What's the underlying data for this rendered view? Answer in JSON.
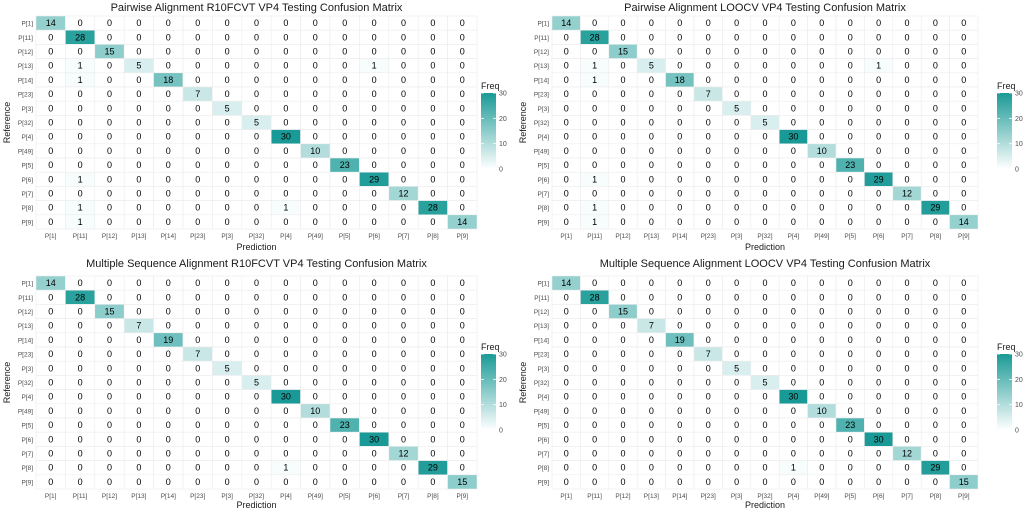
{
  "chart_data": [
    {
      "type": "heatmap",
      "title": "Pairwise Alignment R10FCVT VP4 Testing Confusion Matrix",
      "xlabel": "Prediction",
      "ylabel": "Reference",
      "categories": [
        "P[1]",
        "P[11]",
        "P[12]",
        "P[13]",
        "P[14]",
        "P[23]",
        "P[3]",
        "P[32]",
        "P[4]",
        "P[49]",
        "P[5]",
        "P[6]",
        "P[7]",
        "P[8]",
        "P[9]"
      ],
      "values": [
        [
          14,
          0,
          0,
          0,
          0,
          0,
          0,
          0,
          0,
          0,
          0,
          0,
          0,
          0,
          0
        ],
        [
          0,
          28,
          0,
          0,
          0,
          0,
          0,
          0,
          0,
          0,
          0,
          0,
          0,
          0,
          0
        ],
        [
          0,
          0,
          15,
          0,
          0,
          0,
          0,
          0,
          0,
          0,
          0,
          0,
          0,
          0,
          0
        ],
        [
          0,
          1,
          0,
          5,
          0,
          0,
          0,
          0,
          0,
          0,
          0,
          1,
          0,
          0,
          0
        ],
        [
          0,
          1,
          0,
          0,
          18,
          0,
          0,
          0,
          0,
          0,
          0,
          0,
          0,
          0,
          0
        ],
        [
          0,
          0,
          0,
          0,
          0,
          7,
          0,
          0,
          0,
          0,
          0,
          0,
          0,
          0,
          0
        ],
        [
          0,
          0,
          0,
          0,
          0,
          0,
          5,
          0,
          0,
          0,
          0,
          0,
          0,
          0,
          0
        ],
        [
          0,
          0,
          0,
          0,
          0,
          0,
          0,
          5,
          0,
          0,
          0,
          0,
          0,
          0,
          0
        ],
        [
          0,
          0,
          0,
          0,
          0,
          0,
          0,
          0,
          30,
          0,
          0,
          0,
          0,
          0,
          0
        ],
        [
          0,
          0,
          0,
          0,
          0,
          0,
          0,
          0,
          0,
          10,
          0,
          0,
          0,
          0,
          0
        ],
        [
          0,
          0,
          0,
          0,
          0,
          0,
          0,
          0,
          0,
          0,
          23,
          0,
          0,
          0,
          0
        ],
        [
          0,
          1,
          0,
          0,
          0,
          0,
          0,
          0,
          0,
          0,
          0,
          29,
          0,
          0,
          0
        ],
        [
          0,
          0,
          0,
          0,
          0,
          0,
          0,
          0,
          0,
          0,
          0,
          0,
          12,
          0,
          0
        ],
        [
          0,
          1,
          0,
          0,
          0,
          0,
          0,
          0,
          1,
          0,
          0,
          0,
          0,
          28,
          0
        ],
        [
          0,
          1,
          0,
          0,
          0,
          0,
          0,
          0,
          0,
          0,
          0,
          0,
          0,
          0,
          14
        ]
      ],
      "legend": {
        "title": "Freq",
        "ticks": [
          0,
          10,
          20,
          30
        ],
        "range": [
          0,
          30
        ]
      }
    },
    {
      "type": "heatmap",
      "title": "Pairwise Alignment LOOCV VP4 Testing Confusion Matrix",
      "xlabel": "Prediction",
      "ylabel": "Reference",
      "categories": [
        "P[1]",
        "P[11]",
        "P[12]",
        "P[13]",
        "P[14]",
        "P[23]",
        "P[3]",
        "P[32]",
        "P[4]",
        "P[49]",
        "P[5]",
        "P[6]",
        "P[7]",
        "P[8]",
        "P[9]"
      ],
      "values": [
        [
          14,
          0,
          0,
          0,
          0,
          0,
          0,
          0,
          0,
          0,
          0,
          0,
          0,
          0,
          0
        ],
        [
          0,
          28,
          0,
          0,
          0,
          0,
          0,
          0,
          0,
          0,
          0,
          0,
          0,
          0,
          0
        ],
        [
          0,
          0,
          15,
          0,
          0,
          0,
          0,
          0,
          0,
          0,
          0,
          0,
          0,
          0,
          0
        ],
        [
          0,
          1,
          0,
          5,
          0,
          0,
          0,
          0,
          0,
          0,
          0,
          1,
          0,
          0,
          0
        ],
        [
          0,
          1,
          0,
          0,
          18,
          0,
          0,
          0,
          0,
          0,
          0,
          0,
          0,
          0,
          0
        ],
        [
          0,
          0,
          0,
          0,
          0,
          7,
          0,
          0,
          0,
          0,
          0,
          0,
          0,
          0,
          0
        ],
        [
          0,
          0,
          0,
          0,
          0,
          0,
          5,
          0,
          0,
          0,
          0,
          0,
          0,
          0,
          0
        ],
        [
          0,
          0,
          0,
          0,
          0,
          0,
          0,
          5,
          0,
          0,
          0,
          0,
          0,
          0,
          0
        ],
        [
          0,
          0,
          0,
          0,
          0,
          0,
          0,
          0,
          30,
          0,
          0,
          0,
          0,
          0,
          0
        ],
        [
          0,
          0,
          0,
          0,
          0,
          0,
          0,
          0,
          0,
          10,
          0,
          0,
          0,
          0,
          0
        ],
        [
          0,
          0,
          0,
          0,
          0,
          0,
          0,
          0,
          0,
          0,
          23,
          0,
          0,
          0,
          0
        ],
        [
          0,
          1,
          0,
          0,
          0,
          0,
          0,
          0,
          0,
          0,
          0,
          29,
          0,
          0,
          0
        ],
        [
          0,
          0,
          0,
          0,
          0,
          0,
          0,
          0,
          0,
          0,
          0,
          0,
          12,
          0,
          0
        ],
        [
          0,
          1,
          0,
          0,
          0,
          0,
          0,
          0,
          0,
          0,
          0,
          0,
          0,
          29,
          0
        ],
        [
          0,
          1,
          0,
          0,
          0,
          0,
          0,
          0,
          0,
          0,
          0,
          0,
          0,
          0,
          14
        ]
      ],
      "legend": {
        "title": "Freq",
        "ticks": [
          0,
          10,
          20,
          30
        ],
        "range": [
          0,
          30
        ]
      }
    },
    {
      "type": "heatmap",
      "title": "Multiple Sequence Alignment R10FCVT VP4 Testing Confusion Matrix",
      "xlabel": "Prediction",
      "ylabel": "Reference",
      "categories": [
        "P[1]",
        "P[11]",
        "P[12]",
        "P[13]",
        "P[14]",
        "P[23]",
        "P[3]",
        "P[32]",
        "P[4]",
        "P[49]",
        "P[5]",
        "P[6]",
        "P[7]",
        "P[8]",
        "P[9]"
      ],
      "values": [
        [
          14,
          0,
          0,
          0,
          0,
          0,
          0,
          0,
          0,
          0,
          0,
          0,
          0,
          0,
          0
        ],
        [
          0,
          28,
          0,
          0,
          0,
          0,
          0,
          0,
          0,
          0,
          0,
          0,
          0,
          0,
          0
        ],
        [
          0,
          0,
          15,
          0,
          0,
          0,
          0,
          0,
          0,
          0,
          0,
          0,
          0,
          0,
          0
        ],
        [
          0,
          0,
          0,
          7,
          0,
          0,
          0,
          0,
          0,
          0,
          0,
          0,
          0,
          0,
          0
        ],
        [
          0,
          0,
          0,
          0,
          19,
          0,
          0,
          0,
          0,
          0,
          0,
          0,
          0,
          0,
          0
        ],
        [
          0,
          0,
          0,
          0,
          0,
          7,
          0,
          0,
          0,
          0,
          0,
          0,
          0,
          0,
          0
        ],
        [
          0,
          0,
          0,
          0,
          0,
          0,
          5,
          0,
          0,
          0,
          0,
          0,
          0,
          0,
          0
        ],
        [
          0,
          0,
          0,
          0,
          0,
          0,
          0,
          5,
          0,
          0,
          0,
          0,
          0,
          0,
          0
        ],
        [
          0,
          0,
          0,
          0,
          0,
          0,
          0,
          0,
          30,
          0,
          0,
          0,
          0,
          0,
          0
        ],
        [
          0,
          0,
          0,
          0,
          0,
          0,
          0,
          0,
          0,
          10,
          0,
          0,
          0,
          0,
          0
        ],
        [
          0,
          0,
          0,
          0,
          0,
          0,
          0,
          0,
          0,
          0,
          23,
          0,
          0,
          0,
          0
        ],
        [
          0,
          0,
          0,
          0,
          0,
          0,
          0,
          0,
          0,
          0,
          0,
          30,
          0,
          0,
          0
        ],
        [
          0,
          0,
          0,
          0,
          0,
          0,
          0,
          0,
          0,
          0,
          0,
          0,
          12,
          0,
          0
        ],
        [
          0,
          0,
          0,
          0,
          0,
          0,
          0,
          0,
          1,
          0,
          0,
          0,
          0,
          29,
          0
        ],
        [
          0,
          0,
          0,
          0,
          0,
          0,
          0,
          0,
          0,
          0,
          0,
          0,
          0,
          0,
          15
        ]
      ],
      "legend": {
        "title": "Freq",
        "ticks": [
          0,
          10,
          20,
          30
        ],
        "range": [
          0,
          30
        ]
      }
    },
    {
      "type": "heatmap",
      "title": "Multiple Sequence Alignment LOOCV VP4 Testing Confusion Matrix",
      "xlabel": "Prediction",
      "ylabel": "Reference",
      "categories": [
        "P[1]",
        "P[11]",
        "P[12]",
        "P[13]",
        "P[14]",
        "P[23]",
        "P[3]",
        "P[32]",
        "P[4]",
        "P[49]",
        "P[5]",
        "P[6]",
        "P[7]",
        "P[8]",
        "P[9]"
      ],
      "values": [
        [
          14,
          0,
          0,
          0,
          0,
          0,
          0,
          0,
          0,
          0,
          0,
          0,
          0,
          0,
          0
        ],
        [
          0,
          28,
          0,
          0,
          0,
          0,
          0,
          0,
          0,
          0,
          0,
          0,
          0,
          0,
          0
        ],
        [
          0,
          0,
          15,
          0,
          0,
          0,
          0,
          0,
          0,
          0,
          0,
          0,
          0,
          0,
          0
        ],
        [
          0,
          0,
          0,
          7,
          0,
          0,
          0,
          0,
          0,
          0,
          0,
          0,
          0,
          0,
          0
        ],
        [
          0,
          0,
          0,
          0,
          19,
          0,
          0,
          0,
          0,
          0,
          0,
          0,
          0,
          0,
          0
        ],
        [
          0,
          0,
          0,
          0,
          0,
          7,
          0,
          0,
          0,
          0,
          0,
          0,
          0,
          0,
          0
        ],
        [
          0,
          0,
          0,
          0,
          0,
          0,
          5,
          0,
          0,
          0,
          0,
          0,
          0,
          0,
          0
        ],
        [
          0,
          0,
          0,
          0,
          0,
          0,
          0,
          5,
          0,
          0,
          0,
          0,
          0,
          0,
          0
        ],
        [
          0,
          0,
          0,
          0,
          0,
          0,
          0,
          0,
          30,
          0,
          0,
          0,
          0,
          0,
          0
        ],
        [
          0,
          0,
          0,
          0,
          0,
          0,
          0,
          0,
          0,
          10,
          0,
          0,
          0,
          0,
          0
        ],
        [
          0,
          0,
          0,
          0,
          0,
          0,
          0,
          0,
          0,
          0,
          23,
          0,
          0,
          0,
          0
        ],
        [
          0,
          0,
          0,
          0,
          0,
          0,
          0,
          0,
          0,
          0,
          0,
          30,
          0,
          0,
          0
        ],
        [
          0,
          0,
          0,
          0,
          0,
          0,
          0,
          0,
          0,
          0,
          0,
          0,
          12,
          0,
          0
        ],
        [
          0,
          0,
          0,
          0,
          0,
          0,
          0,
          0,
          1,
          0,
          0,
          0,
          0,
          29,
          0
        ],
        [
          0,
          0,
          0,
          0,
          0,
          0,
          0,
          0,
          0,
          0,
          0,
          0,
          0,
          0,
          15
        ]
      ],
      "legend": {
        "title": "Freq",
        "ticks": [
          0,
          10,
          20,
          30
        ],
        "range": [
          0,
          30
        ]
      }
    }
  ],
  "colors": {
    "low": "#ffffff",
    "high": "#1a9a96",
    "grid": "#ececec",
    "text": "#000000",
    "tick_text": "#4d4d4d"
  }
}
